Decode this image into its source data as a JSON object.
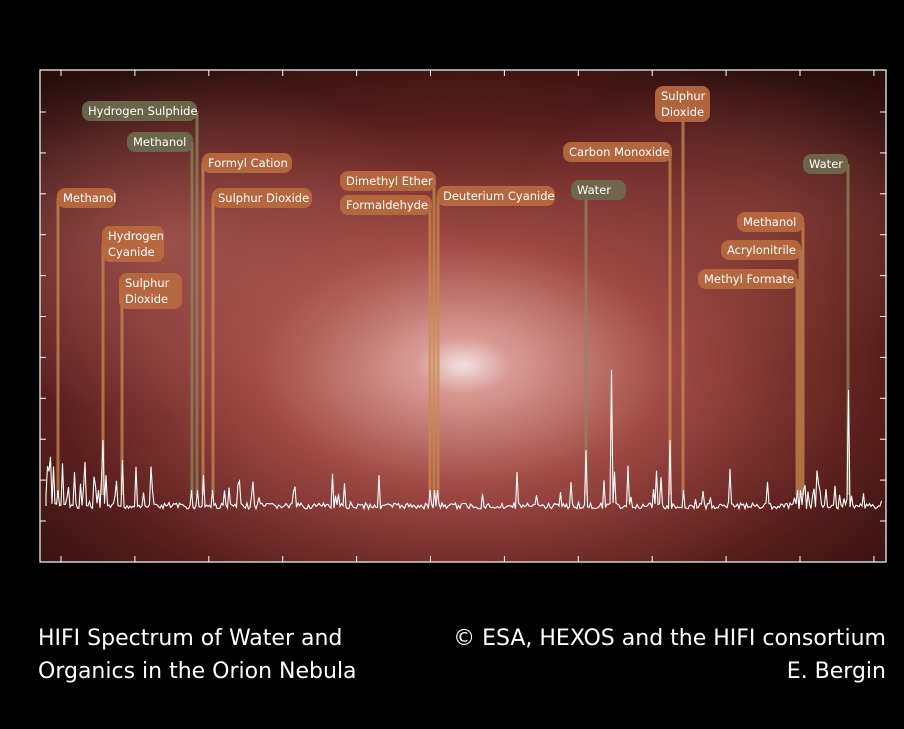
{
  "labels": [
    {
      "lines": [
        "Hydrogen Sulphide"
      ],
      "style": "dark"
    },
    {
      "lines": [
        "Methanol"
      ],
      "style": "dark"
    },
    {
      "lines": [
        "Formyl Cation"
      ],
      "style": "orange"
    },
    {
      "lines": [
        "Sulphur Dioxide"
      ],
      "style": "orange"
    },
    {
      "lines": [
        "Methanol"
      ],
      "style": "orange"
    },
    {
      "lines": [
        "Hydrogen",
        "Cyanide"
      ],
      "style": "orange"
    },
    {
      "lines": [
        "Sulphur",
        "Dioxide"
      ],
      "style": "orange"
    },
    {
      "lines": [
        "Dimethyl Ether"
      ],
      "style": "orange"
    },
    {
      "lines": [
        "Formaldehyde"
      ],
      "style": "orange"
    },
    {
      "lines": [
        "Deuterium Cyanide"
      ],
      "style": "orange"
    },
    {
      "lines": [
        "Water"
      ],
      "style": "dark"
    },
    {
      "lines": [
        "Carbon Monoxide"
      ],
      "style": "orange"
    },
    {
      "lines": [
        "Sulphur",
        "Dioxide"
      ],
      "style": "orange"
    },
    {
      "lines": [
        "Water"
      ],
      "style": "dark"
    },
    {
      "lines": [
        "Methanol"
      ],
      "style": "orange"
    },
    {
      "lines": [
        "Acrylonitrile"
      ],
      "style": "orange"
    },
    {
      "lines": [
        "Methyl Formate"
      ],
      "style": "orange"
    }
  ],
  "caption": {
    "left": [
      "HIFI Spectrum of Water and",
      "Organics in the Orion Nebula"
    ],
    "right": [
      "© ESA, HEXOS and the HIFI consortium",
      "E. Bergin"
    ]
  }
}
